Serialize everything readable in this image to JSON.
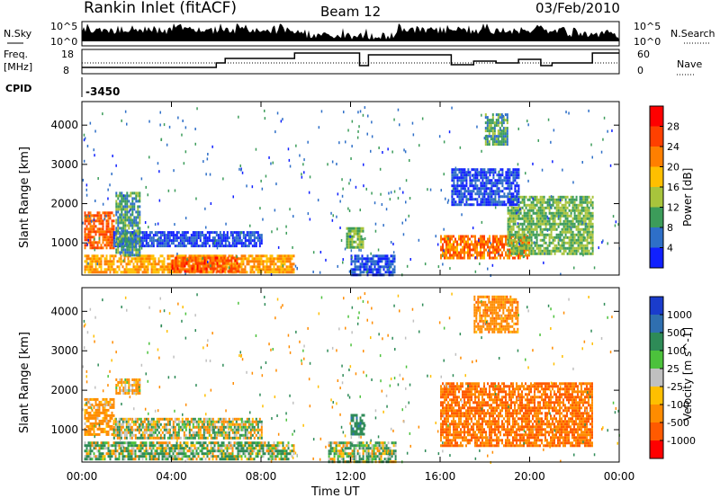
{
  "header": {
    "station": "Rankin Inlet (fitACF)",
    "beam": "Beam 12",
    "date": "03/Feb/2010"
  },
  "strip": {
    "nsky_label": "N.Sky",
    "nsky_ticks": [
      "10^5",
      "10^0"
    ],
    "nsearch_label": "N.Search",
    "nsearch_ticks": [
      "10^5",
      "10^0"
    ],
    "freq_label_1": "Freq.",
    "freq_label_2": "[MHz]",
    "freq_ticks": [
      "18",
      "8"
    ],
    "nave_label": "Nave",
    "nave_ticks": [
      "60",
      "0"
    ],
    "cpid_label": "CPID",
    "cpid_value": "-3450"
  },
  "panels": {
    "ylabel": "Slant Range [km]",
    "yticks": [
      "4000",
      "3000",
      "2000",
      "1000"
    ],
    "xticks": [
      "00:00",
      "04:00",
      "08:00",
      "12:00",
      "16:00",
      "20:00",
      "00:00"
    ],
    "xlabel": "Time UT"
  },
  "power_scale": {
    "label": "Power [dB]",
    "ticks": [
      "28",
      "24",
      "20",
      "16",
      "12",
      "8",
      "4"
    ],
    "colors": [
      "#ff0000",
      "#ff4000",
      "#ff7f00",
      "#ffbf00",
      "#a8c43c",
      "#3c9c5a",
      "#2e6fc8",
      "#1020ff"
    ]
  },
  "velocity_scale": {
    "label": "Velocity [m s^-1]",
    "ticks": [
      "1000",
      "500",
      "100",
      "25",
      "-25",
      "-100",
      "-500",
      "-1000"
    ],
    "colors": [
      "#1a3ccc",
      "#2f6fb0",
      "#2e8b57",
      "#4cc23c",
      "#c0c0c0",
      "#ffbf00",
      "#ff8c00",
      "#ff5a00",
      "#ff0000"
    ]
  },
  "chart_data": {
    "type": "heatmap",
    "title": "Rankin Inlet (fitACF) Beam 12 03/Feb/2010",
    "xlabel": "Time UT",
    "ylabel": "Slant Range [km]",
    "xlim_hours": [
      0,
      24
    ],
    "ylim_km": [
      180,
      4600
    ],
    "series": [
      {
        "name": "Power [dB]",
        "regions": [
          {
            "t0": 0.1,
            "t1": 1.4,
            "r0": 900,
            "r1": 1800,
            "value": 26
          },
          {
            "t0": 0.1,
            "t1": 9.5,
            "r0": 250,
            "r1": 700,
            "value": 22
          },
          {
            "t0": 1.4,
            "t1": 8.0,
            "r0": 900,
            "r1": 1300,
            "value": 6
          },
          {
            "t0": 1.5,
            "t1": 2.6,
            "r0": 700,
            "r1": 2300,
            "value": 12
          },
          {
            "t0": 4.0,
            "t1": 7.0,
            "r0": 300,
            "r1": 650,
            "value": 27
          },
          {
            "t0": 11.8,
            "t1": 12.6,
            "r0": 900,
            "r1": 1400,
            "value": 14
          },
          {
            "t0": 12.0,
            "t1": 14.0,
            "r0": 200,
            "r1": 700,
            "value": 6
          },
          {
            "t0": 16.0,
            "t1": 20.0,
            "r0": 600,
            "r1": 1200,
            "value": 25
          },
          {
            "t0": 19.0,
            "t1": 22.8,
            "r0": 700,
            "r1": 2200,
            "value": 14
          },
          {
            "t0": 16.5,
            "t1": 19.5,
            "r0": 2000,
            "r1": 2900,
            "value": 6
          },
          {
            "t0": 18.0,
            "t1": 19.0,
            "r0": 3500,
            "r1": 4300,
            "value": 12
          }
        ]
      },
      {
        "name": "Velocity [m s^-1]",
        "regions": [
          {
            "t0": 0.1,
            "t1": 1.4,
            "r0": 900,
            "r1": 1800,
            "value": -150
          },
          {
            "t0": 1.4,
            "t1": 8.0,
            "r0": 800,
            "r1": 1300,
            "value": 0
          },
          {
            "t0": 0.1,
            "t1": 9.5,
            "r0": 250,
            "r1": 700,
            "value": 50
          },
          {
            "t0": 1.5,
            "t1": 2.6,
            "r0": 1900,
            "r1": 2300,
            "value": -100
          },
          {
            "t0": 12.0,
            "t1": 12.6,
            "r0": 900,
            "r1": 1400,
            "value": 200
          },
          {
            "t0": 16.0,
            "t1": 22.8,
            "r0": 600,
            "r1": 2200,
            "value": -300
          },
          {
            "t0": 17.5,
            "t1": 19.5,
            "r0": 3500,
            "r1": 4400,
            "value": -200
          },
          {
            "t0": 11.0,
            "t1": 14.0,
            "r0": 200,
            "r1": 700,
            "value": 50
          }
        ]
      }
    ],
    "grid": false
  }
}
